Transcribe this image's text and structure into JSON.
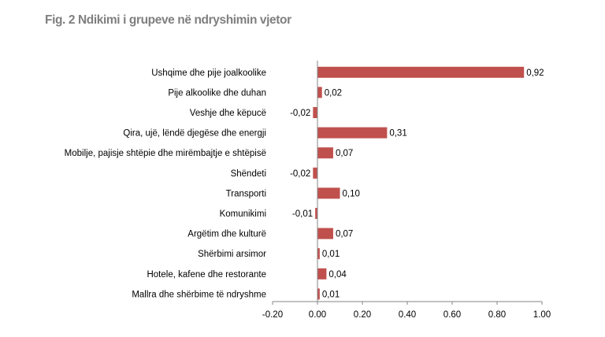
{
  "chart_data": {
    "type": "bar",
    "orientation": "horizontal",
    "title": "Fig. 2 Ndikimi i grupeve në ndryshimin vjetor",
    "categories": [
      "Ushqime dhe pije joalkoolike",
      "Pije alkoolike dhe duhan",
      "Veshje dhe këpucë",
      "Qira, ujë, lëndë djegëse dhe energji",
      "Mobilje, pajisje shtëpie dhe mirëmbajtje e shtëpisë",
      "Shëndeti",
      "Transporti",
      "Komunikimi",
      "Argëtim dhe kulturë",
      "Shërbimi arsimor",
      "Hotele, kafene dhe restorante",
      "Mallra dhe shërbime të ndryshme"
    ],
    "values": [
      0.92,
      0.02,
      -0.02,
      0.31,
      0.07,
      -0.02,
      0.1,
      -0.01,
      0.07,
      0.01,
      0.04,
      0.01
    ],
    "value_labels": [
      "0,92",
      "0,02",
      "-0,02",
      "0,31",
      "0,07",
      "-0,02",
      "0,10",
      "-0,01",
      "0,07",
      "0,01",
      "0,04",
      "0,01"
    ],
    "xlim": [
      -0.2,
      1.0
    ],
    "xticks": [
      -0.2,
      0.0,
      0.2,
      0.4,
      0.6,
      0.8,
      1.0
    ],
    "xtick_labels": [
      "-0.20",
      "0.00",
      "0.20",
      "0.40",
      "0.60",
      "0.80",
      "1.00"
    ],
    "bar_color": "#c0504d",
    "grid": false,
    "legend": "none"
  }
}
